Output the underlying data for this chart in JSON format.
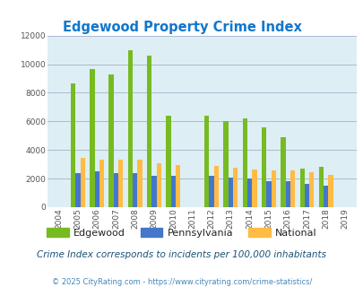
{
  "title": "Edgewood Property Crime Index",
  "years": [
    2004,
    2005,
    2006,
    2007,
    2008,
    2009,
    2010,
    2011,
    2012,
    2013,
    2014,
    2015,
    2016,
    2017,
    2018,
    2019
  ],
  "edgewood": [
    0,
    8650,
    9650,
    9250,
    11000,
    10600,
    6400,
    0,
    6400,
    6000,
    6200,
    5600,
    4900,
    2700,
    2850,
    0
  ],
  "pennsylvania": [
    0,
    2400,
    2500,
    2400,
    2400,
    2200,
    2200,
    0,
    2200,
    2100,
    2000,
    1800,
    1800,
    1650,
    1500,
    0
  ],
  "national": [
    0,
    3450,
    3350,
    3300,
    3300,
    3050,
    2950,
    0,
    2900,
    2750,
    2650,
    2550,
    2550,
    2450,
    2250,
    0
  ],
  "edgewood_color": "#77bb22",
  "pennsylvania_color": "#4477cc",
  "national_color": "#ffbb44",
  "bg_color": "#ddeef5",
  "title_color": "#1177cc",
  "ylim": [
    0,
    12000
  ],
  "yticks": [
    0,
    2000,
    4000,
    6000,
    8000,
    10000,
    12000
  ],
  "subtitle": "Crime Index corresponds to incidents per 100,000 inhabitants",
  "footer": "© 2025 CityRating.com - https://www.cityrating.com/crime-statistics/",
  "subtitle_color": "#1a5276",
  "footer_color": "#4488bb"
}
